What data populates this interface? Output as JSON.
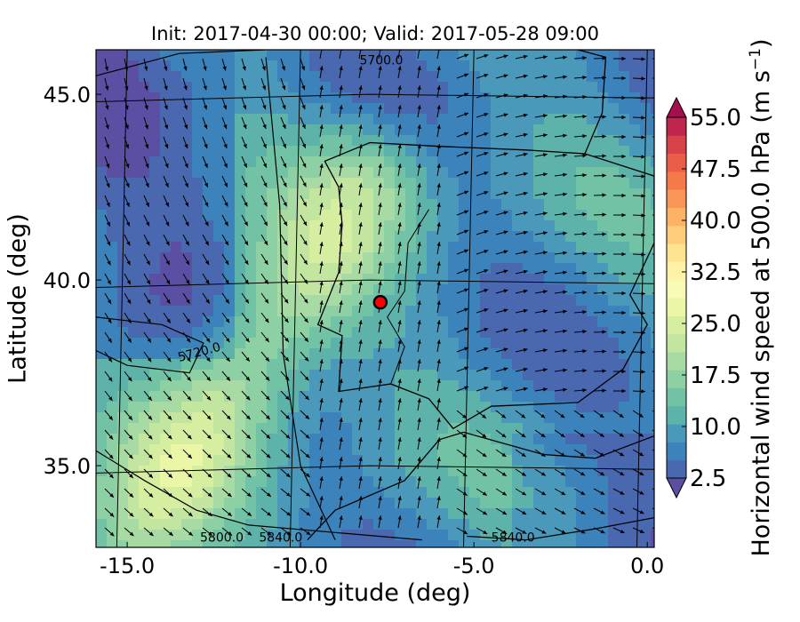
{
  "chart_data": {
    "type": "heatmap",
    "title": "Init: 2017-04-30 00:00; Valid: 2017-05-28 09:00",
    "xlabel": "Longitude (deg)",
    "ylabel": "Latitude (deg)",
    "xlim": [
      -15.9,
      0.2
    ],
    "ylim": [
      32.8,
      46.2
    ],
    "xticks": [
      {
        "value": -15.0,
        "label": "-15.0"
      },
      {
        "value": -10.0,
        "label": "-10.0"
      },
      {
        "value": -5.0,
        "label": "-5.0"
      },
      {
        "value": 0.0,
        "label": "0.0"
      }
    ],
    "yticks": [
      {
        "value": 45.0,
        "label": "45.0"
      },
      {
        "value": 40.0,
        "label": "40.0"
      },
      {
        "value": 35.0,
        "label": "35.0"
      }
    ],
    "colorbar": {
      "label_main": "Horizontal wind speed at 500.0 hPa (m s",
      "label_sup": "−1",
      "label_end": ")",
      "min": 2.5,
      "max": 55.0,
      "step": 2.5,
      "extend": "both",
      "ticks": [
        "2.5",
        "10.0",
        "17.5",
        "25.0",
        "32.5",
        "40.0",
        "47.5",
        "55.0"
      ],
      "colors": [
        "#5a4fa2",
        "#4a68b0",
        "#3c82bb",
        "#4a99ba",
        "#5db3aa",
        "#72c3a6",
        "#8dd0a4",
        "#a8dba4",
        "#c2e59f",
        "#d6eea0",
        "#ebf7a6",
        "#f7fbb3",
        "#fef2a9",
        "#fee391",
        "#fdcd79",
        "#fdb366",
        "#fa9657",
        "#f57a4a",
        "#ea5d46",
        "#d84349",
        "#c0264d",
        "#a50f4b"
      ]
    },
    "contours": [
      {
        "label": "5700.0"
      },
      {
        "label": "5720.0"
      },
      {
        "label": "5800.0"
      },
      {
        "label": "5840.0"
      },
      {
        "label": "5840.0"
      }
    ],
    "marker": {
      "lon": -7.7,
      "lat": 39.4
    },
    "jet_core": {
      "start": [
        -14.2,
        34.0
      ],
      "end": [
        -9.5,
        40.5
      ],
      "peak_speed": 22.0
    },
    "background_speed": 8.0
  }
}
